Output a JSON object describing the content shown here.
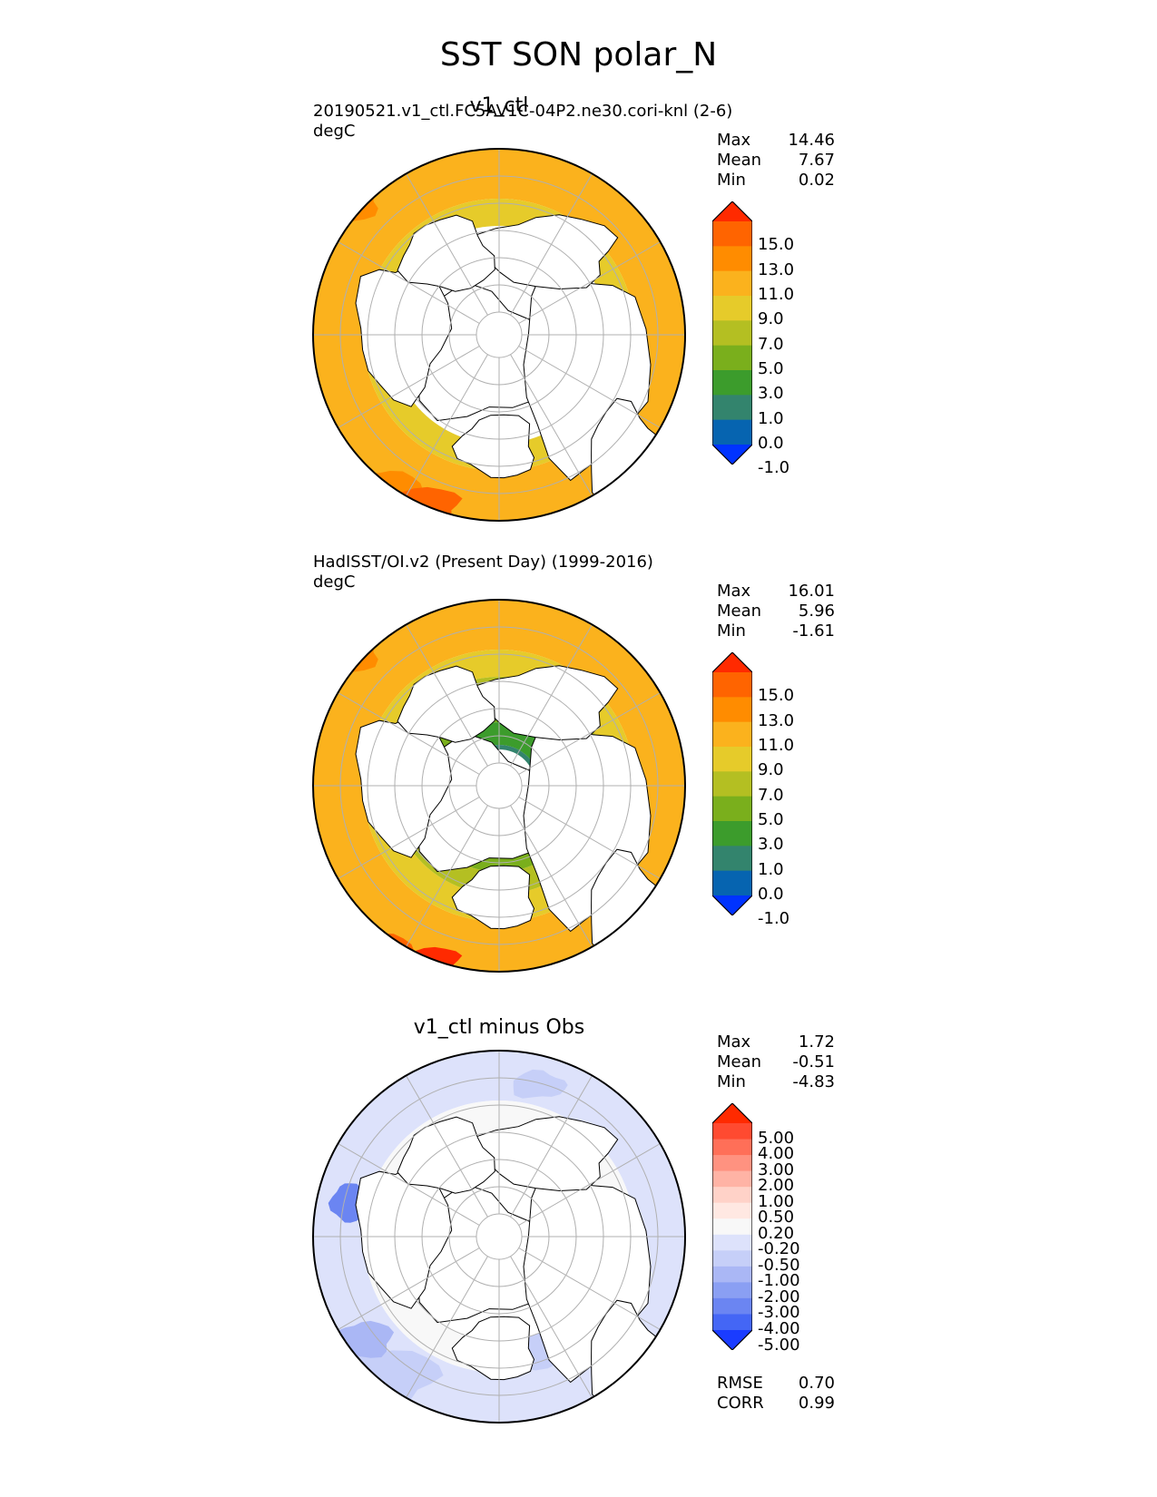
{
  "title": "SST SON polar_N",
  "panels": [
    {
      "title": "v1_ctl",
      "source": "20190521.v1_ctl.FC5AV1C-04P2.ne30.cori-knl (2-6)",
      "units": "degC",
      "stats": [
        {
          "label": "Max",
          "value": "14.46"
        },
        {
          "label": "Mean",
          "value": "7.67"
        },
        {
          "label": "Min",
          "value": "0.02"
        }
      ]
    },
    {
      "title": "",
      "source": "HadISST/OI.v2 (Present Day) (1999-2016)",
      "units": "degC",
      "stats": [
        {
          "label": "Max",
          "value": "16.01"
        },
        {
          "label": "Mean",
          "value": "5.96"
        },
        {
          "label": "Min",
          "value": "-1.61"
        }
      ]
    },
    {
      "title": "v1_ctl minus Obs",
      "source": "",
      "units": "",
      "stats": [
        {
          "label": "Max",
          "value": "1.72"
        },
        {
          "label": "Mean",
          "value": "-0.51"
        },
        {
          "label": "Min",
          "value": "-4.83"
        }
      ],
      "metrics": [
        {
          "label": "RMSE",
          "value": "0.70"
        },
        {
          "label": "CORR",
          "value": "0.99"
        }
      ]
    }
  ],
  "colorbars": {
    "sst": {
      "labels": [
        "15.0",
        "13.0",
        "11.0",
        "9.0",
        "7.0",
        "5.0",
        "3.0",
        "1.0",
        "0.0",
        "-1.0"
      ],
      "colors": [
        "#ff2a00",
        "#ff6400",
        "#ff8c00",
        "#fbb21d",
        "#e6cb2a",
        "#b4bf22",
        "#7aaf1c",
        "#3c9c2c",
        "#33846d",
        "#0664b0",
        "#0033ff"
      ]
    },
    "diff": {
      "labels": [
        "5.00",
        "4.00",
        "3.00",
        "2.00",
        "1.00",
        "0.50",
        "0.20",
        "-0.20",
        "-0.50",
        "-1.00",
        "-2.00",
        "-3.00",
        "-4.00",
        "-5.00"
      ],
      "colors": [
        "#ff2a00",
        "#ff4a30",
        "#ff6f58",
        "#ff9280",
        "#ffb3a5",
        "#ffd2c8",
        "#ffe8e2",
        "#f8f8f8",
        "#dde2fb",
        "#c6cff8",
        "#aab7f5",
        "#8a9ff3",
        "#6b85f2",
        "#4466f5",
        "#1a3cff"
      ]
    }
  },
  "chart_data": [
    {
      "type": "heatmap",
      "title": "v1_ctl",
      "projection": "north polar stereographic",
      "variable": "SST SON",
      "units": "degC",
      "levels": [
        -1,
        0,
        1,
        3,
        5,
        7,
        9,
        11,
        13,
        15
      ],
      "max": 14.46,
      "mean": 7.67,
      "min": 0.02
    },
    {
      "type": "heatmap",
      "title": "HadISST/OI.v2 (Present Day) (1999-2016)",
      "projection": "north polar stereographic",
      "variable": "SST SON",
      "units": "degC",
      "levels": [
        -1,
        0,
        1,
        3,
        5,
        7,
        9,
        11,
        13,
        15
      ],
      "max": 16.01,
      "mean": 5.96,
      "min": -1.61
    },
    {
      "type": "heatmap",
      "title": "v1_ctl minus Obs",
      "projection": "north polar stereographic",
      "levels": [
        -5,
        -4,
        -3,
        -2,
        -1,
        -0.5,
        -0.2,
        0.2,
        0.5,
        1,
        2,
        3,
        4,
        5
      ],
      "max": 1.72,
      "mean": -0.51,
      "min": -4.83,
      "rmse": 0.7,
      "corr": 0.99
    }
  ]
}
